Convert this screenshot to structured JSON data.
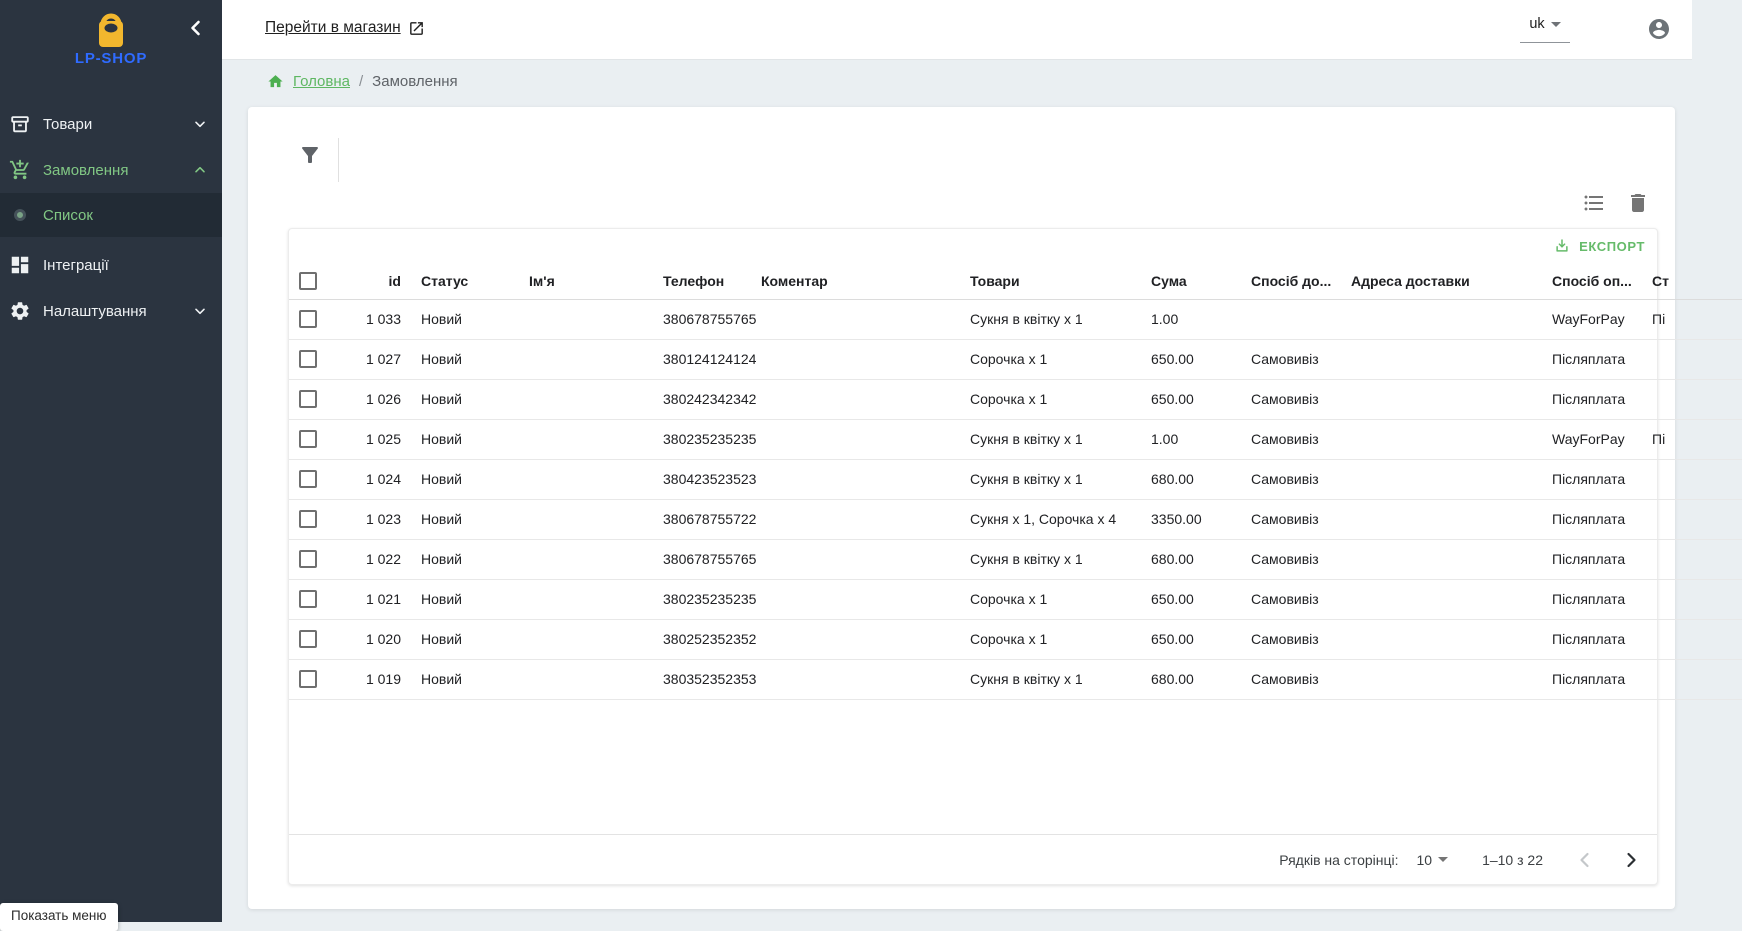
{
  "topbar": {
    "store_link_label": "Перейти в магазин",
    "language": "uk"
  },
  "breadcrumb": {
    "home_label": "Головна",
    "separator": "/",
    "current": "Замовлення"
  },
  "sidebar": {
    "logo_text": "LP-SHOP",
    "items": [
      {
        "label": "Товари",
        "icon": "box-icon",
        "expanded": false
      },
      {
        "label": "Замовлення",
        "icon": "cart-add-icon",
        "expanded": true,
        "active": true
      },
      {
        "label": "Інтеграції",
        "icon": "dashboard-icon"
      },
      {
        "label": "Налаштування",
        "icon": "gear-icon",
        "expanded": false
      }
    ],
    "submenu": {
      "label": "Список",
      "active": true
    }
  },
  "toolbar": {
    "export_label": "ЕКСПОРТ"
  },
  "table": {
    "columns": {
      "id": "id",
      "status": "Статус",
      "name": "Ім'я",
      "phone": "Телефон",
      "comment": "Коментар",
      "products": "Товари",
      "sum": "Сума",
      "delivery": "Спосіб до...",
      "address": "Адреса доставки",
      "payment": "Спосіб оп...",
      "payment_status": "Ст"
    },
    "rows": [
      {
        "id": "1 033",
        "status": "Новий",
        "name": "",
        "phone": "380678755765",
        "comment": "",
        "products": "Сукня в квітку x 1",
        "sum": "1.00",
        "delivery": "",
        "address": "",
        "payment": "WayForPay",
        "payment_status": "Пі"
      },
      {
        "id": "1 027",
        "status": "Новий",
        "name": "",
        "phone": "380124124124",
        "comment": "",
        "products": "Сорочка x 1",
        "sum": "650.00",
        "delivery": "Самовивіз",
        "address": "",
        "payment": "Післяплата",
        "payment_status": ""
      },
      {
        "id": "1 026",
        "status": "Новий",
        "name": "",
        "phone": "380242342342",
        "comment": "",
        "products": "Сорочка x 1",
        "sum": "650.00",
        "delivery": "Самовивіз",
        "address": "",
        "payment": "Післяплата",
        "payment_status": ""
      },
      {
        "id": "1 025",
        "status": "Новий",
        "name": "",
        "phone": "380235235235",
        "comment": "",
        "products": "Сукня в квітку x 1",
        "sum": "1.00",
        "delivery": "Самовивіз",
        "address": "",
        "payment": "WayForPay",
        "payment_status": "Пі"
      },
      {
        "id": "1 024",
        "status": "Новий",
        "name": "",
        "phone": "380423523523",
        "comment": "",
        "products": "Сукня в квітку x 1",
        "sum": "680.00",
        "delivery": "Самовивіз",
        "address": "",
        "payment": "Післяплата",
        "payment_status": ""
      },
      {
        "id": "1 023",
        "status": "Новий",
        "name": "",
        "phone": "380678755722",
        "comment": "",
        "products": "Сукня x 1, Сорочка x 4",
        "sum": "3350.00",
        "delivery": "Самовивіз",
        "address": "",
        "payment": "Післяплата",
        "payment_status": ""
      },
      {
        "id": "1 022",
        "status": "Новий",
        "name": "",
        "phone": "380678755765",
        "comment": "",
        "products": "Сукня в квітку x 1",
        "sum": "680.00",
        "delivery": "Самовивіз",
        "address": "",
        "payment": "Післяплата",
        "payment_status": ""
      },
      {
        "id": "1 021",
        "status": "Новий",
        "name": "",
        "phone": "380235235235",
        "comment": "",
        "products": "Сорочка x 1",
        "sum": "650.00",
        "delivery": "Самовивіз",
        "address": "",
        "payment": "Післяплата",
        "payment_status": ""
      },
      {
        "id": "1 020",
        "status": "Новий",
        "name": "",
        "phone": "380252352352",
        "comment": "",
        "products": "Сорочка x 1",
        "sum": "650.00",
        "delivery": "Самовивіз",
        "address": "",
        "payment": "Післяплата",
        "payment_status": ""
      },
      {
        "id": "1 019",
        "status": "Новий",
        "name": "",
        "phone": "380352352353",
        "comment": "",
        "products": "Сукня в квітку x 1",
        "sum": "680.00",
        "delivery": "Самовивіз",
        "address": "",
        "payment": "Післяплата",
        "payment_status": ""
      }
    ],
    "pagination": {
      "rows_per_page_label": "Рядків на сторінці:",
      "rows_per_page": "10",
      "range_label": "1–10 з 22"
    }
  },
  "status_tooltip": "Показать меню",
  "colors": {
    "sidebar_bg": "#2b3440",
    "sidebar_active_bg": "#222b35",
    "sidebar_green": "#81c784",
    "accent_green": "#4caf50",
    "export_green": "#66bb6a",
    "logo_blue": "#2f6bff",
    "logo_yellow": "#f2b72e",
    "page_bg": "#eaeff2"
  }
}
